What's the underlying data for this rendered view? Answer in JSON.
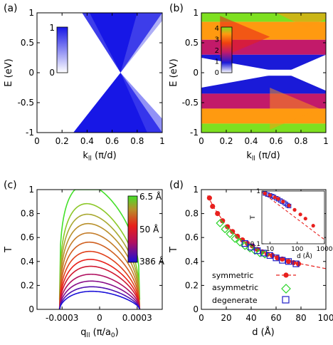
{
  "colors": {
    "band_blue": "#1717e6",
    "symmetric": "#e8201e",
    "asymmetric": "#28d428",
    "degenerate": "#1e1ec8",
    "fit_line": "#e8201e"
  },
  "chart_data": [
    {
      "panel": "(a)",
      "type": "heatmap",
      "xlabel": "k",
      "xlabel_sub": "ll",
      "xlabel_unit": " (π/d)",
      "ylabel": "E (eV)",
      "xlim": [
        0,
        1
      ],
      "ylim": [
        -1,
        1
      ],
      "xticks": [
        "0",
        "0.2",
        "0.4",
        "0.6",
        "0.8",
        "1"
      ],
      "yticks": [
        "-1",
        "-0.5",
        "0",
        "0.5",
        "1"
      ],
      "colorbar": {
        "min_label": "0",
        "max_label": "1",
        "colors": [
          "#ffffff",
          "#1717e6"
        ]
      },
      "dirac_point": {
        "k": 0.667,
        "E": 0
      },
      "cone_edges_E_plus1": [
        0.36,
        1.0
      ],
      "cone_edges_E_minus1": [
        0.29,
        1.0
      ]
    },
    {
      "panel": "(b)",
      "type": "heatmap",
      "xlabel": "k",
      "xlabel_sub": "ll",
      "xlabel_unit": " (π/d)",
      "ylabel": "E (eV)",
      "xlim": [
        0,
        1
      ],
      "ylim": [
        -1,
        1
      ],
      "xticks": [
        "0",
        "0.2",
        "0.4",
        "0.6",
        "0.8",
        "1"
      ],
      "yticks": [
        "-1",
        "-0.5",
        "0",
        "0.5",
        "1"
      ],
      "colorbar": {
        "tick_labels": [
          "0",
          "1",
          "2",
          "3",
          "4"
        ],
        "colors": [
          "#ffffff",
          "#1a1ad8",
          "#c21a6a",
          "#f04010",
          "#ff9a10",
          "#7ee020"
        ]
      },
      "bands": [
        {
          "E_range": [
            0.85,
            1.0
          ],
          "value": 4.0
        },
        {
          "E_range": [
            0.55,
            0.85
          ],
          "value": 3.0
        },
        {
          "E_range": [
            0.3,
            0.55
          ],
          "value": 1.5
        },
        {
          "E_range": [
            0.05,
            0.3
          ],
          "value": 1.0
        },
        {
          "E_range": [
            -0.35,
            -0.05
          ],
          "value": 1.0
        },
        {
          "E_range": [
            -0.6,
            -0.35
          ],
          "value": 1.5
        },
        {
          "E_range": [
            -0.85,
            -0.6
          ],
          "value": 3.0
        },
        {
          "E_range": [
            -1.0,
            -0.85
          ],
          "value": 4.0
        }
      ]
    },
    {
      "panel": "(c)",
      "type": "line",
      "xlabel": "q",
      "xlabel_sub": "ll",
      "xlabel_unit": " (π/a",
      "xlabel_unit_sub": "0",
      "xlabel_unit_end": ")",
      "ylabel": "T",
      "xlim": [
        -0.0005,
        0.0005
      ],
      "ylim": [
        0,
        1
      ],
      "xticks": [
        {
          "value": -0.0003,
          "label": "-0.0003"
        },
        {
          "value": 0,
          "label": "0"
        },
        {
          "value": 0.0003,
          "label": "0.0003"
        }
      ],
      "yticks": [
        "0",
        "0.2",
        "0.4",
        "0.6",
        "0.8",
        "1"
      ],
      "q_edge": 0.00032,
      "colorbar_labels": [
        "6.5 Å",
        "50 Å",
        "386 Å"
      ],
      "series_peaks": [
        1.0,
        0.92,
        0.83,
        0.75,
        0.67,
        0.59,
        0.51,
        0.44,
        0.38,
        0.31,
        0.25,
        0.2,
        0.16
      ],
      "series_colors": [
        "#44e02a",
        "#8cc828",
        "#a8a830",
        "#b8902a",
        "#c47c28",
        "#d06020",
        "#e0401a",
        "#e8201a",
        "#d01830",
        "#b01060",
        "#880c88",
        "#5010b0",
        "#1a10d8"
      ]
    },
    {
      "panel": "(d)",
      "type": "scatter",
      "xlabel": "d (Å)",
      "ylabel": "T",
      "xlim": [
        0,
        100
      ],
      "ylim": [
        0,
        1
      ],
      "xticks": [
        "0",
        "20",
        "40",
        "60",
        "80",
        "100"
      ],
      "yticks": [
        "0",
        "0.2",
        "0.4",
        "0.6",
        "0.8",
        "1"
      ],
      "legend": [
        "symmetric",
        "asymmetric",
        "degenerate"
      ],
      "legend_position": "bottom-left",
      "series": [
        {
          "name": "symmetric",
          "marker": "filled-circle",
          "x": [
            6.5,
            9,
            13,
            17,
            21,
            25,
            29,
            33,
            37,
            41,
            45,
            49,
            53,
            57,
            61,
            65,
            70,
            74,
            78
          ],
          "y": [
            0.93,
            0.86,
            0.8,
            0.74,
            0.69,
            0.65,
            0.61,
            0.58,
            0.55,
            0.53,
            0.5,
            0.48,
            0.46,
            0.45,
            0.43,
            0.42,
            0.4,
            0.39,
            0.38
          ]
        },
        {
          "name": "asymmetric",
          "marker": "open-diamond",
          "x": [
            15,
            19,
            23,
            27,
            31,
            35,
            39,
            43,
            47,
            51
          ],
          "y": [
            0.72,
            0.67,
            0.63,
            0.59,
            0.56,
            0.53,
            0.51,
            0.49,
            0.47,
            0.46
          ]
        },
        {
          "name": "degenerate",
          "marker": "open-square",
          "x": [
            35,
            40,
            45,
            50,
            55,
            60,
            65,
            70,
            76
          ],
          "y": [
            0.55,
            0.52,
            0.49,
            0.47,
            0.45,
            0.43,
            0.41,
            0.4,
            0.38
          ]
        }
      ],
      "fit": {
        "name": "symmetric fit",
        "style": "dashed",
        "x": [
          5,
          10,
          20,
          30,
          40,
          50,
          60,
          70,
          80,
          90,
          100
        ],
        "y": [
          0.95,
          0.85,
          0.7,
          0.6,
          0.53,
          0.48,
          0.44,
          0.41,
          0.38,
          0.36,
          0.34
        ]
      },
      "inset": {
        "type": "scatter",
        "scale": "log-log",
        "xlabel": "d (Å)",
        "ylabel": "T",
        "xlim": [
          5,
          1000
        ],
        "ylim": [
          0.1,
          1
        ],
        "xticks": [
          {
            "value": 10,
            "label": "10"
          },
          {
            "value": 100,
            "label": "100"
          },
          {
            "value": 1000,
            "label": "1000"
          }
        ],
        "yticks": [
          {
            "value": 0.1,
            "label": "0.1"
          },
          {
            "value": 1,
            "label": "1"
          }
        ],
        "series": [
          {
            "name": "degenerate",
            "marker": "open-square",
            "x": [
              6.5,
              8,
              10,
              12,
              14,
              17,
              20,
              24,
              28,
              33,
              38,
              44,
              50
            ],
            "y": [
              0.9,
              0.86,
              0.83,
              0.8,
              0.77,
              0.73,
              0.7,
              0.66,
              0.63,
              0.6,
              0.57,
              0.54,
              0.52
            ]
          },
          {
            "name": "symmetric",
            "marker": "filled-circle",
            "x": [
              6.5,
              10,
              15,
              20,
              30,
              50,
              80,
              130,
              200,
              386
            ],
            "y": [
              0.9,
              0.83,
              0.76,
              0.71,
              0.63,
              0.53,
              0.44,
              0.36,
              0.3,
              0.22
            ]
          }
        ],
        "fit": {
          "x": [
            5,
            1000
          ],
          "y": [
            0.95,
            0.12
          ]
        }
      }
    }
  ]
}
